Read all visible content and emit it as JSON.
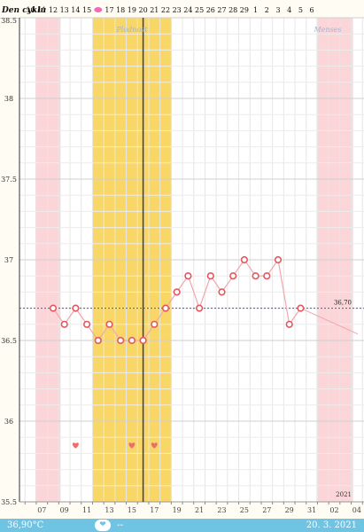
{
  "header": {
    "title": "Den cyklu"
  },
  "chart_data": {
    "type": "line",
    "cycle_days": [
      "10",
      "11",
      "12",
      "13",
      "14",
      "15",
      "",
      "17",
      "18",
      "19",
      "20",
      "21",
      "22",
      "23",
      "24",
      "25",
      "26",
      "27",
      "28",
      "29",
      "1",
      "2",
      "3",
      "4",
      "5",
      "6"
    ],
    "ovulation_day_marker": "pink-egg-icon",
    "y_ticks": [
      "38.5",
      "38",
      "37.5",
      "37",
      "36.5",
      "36",
      "35.5"
    ],
    "ylim": [
      35.5,
      38.5
    ],
    "x_date_labels": [
      "07",
      "09",
      "11",
      "13",
      "15",
      "17",
      "19",
      "21",
      "23",
      "25",
      "27",
      "29",
      "31",
      "02",
      "04"
    ],
    "temperatures": [
      36.7,
      36.6,
      36.7,
      36.6,
      36.5,
      36.6,
      36.5,
      36.5,
      36.5,
      36.6,
      36.7,
      36.8,
      36.9,
      36.7,
      36.9,
      36.8,
      36.9,
      37.0,
      36.9,
      36.9,
      37.0,
      36.6,
      36.7
    ],
    "coverline": {
      "value": 36.7,
      "label": "36,70"
    },
    "fertile_window": {
      "label": "Plodnost",
      "start_day": 4,
      "end_day": 10
    },
    "menses_label": "Menses",
    "menses_periods": [
      {
        "start_day": -1,
        "end_day": 0
      },
      {
        "start_day": 24,
        "end_day": 26
      }
    ],
    "ovulation_day": 8,
    "heart_days": [
      2,
      7,
      9
    ],
    "year_label": "2021",
    "colors": {
      "menses": "#fcd5d8",
      "fertile": "#f8d766",
      "line": "#f2a6aa",
      "point": "#e2575e",
      "ovulation_line": "#2e3a82",
      "coverline": "#4b4fb8",
      "heart": "#ec6d6a"
    }
  },
  "footer": {
    "temperature": "36,90°C",
    "heart_icon": "heart-icon",
    "heart_value": "--",
    "date": "20. 3. 2021"
  }
}
